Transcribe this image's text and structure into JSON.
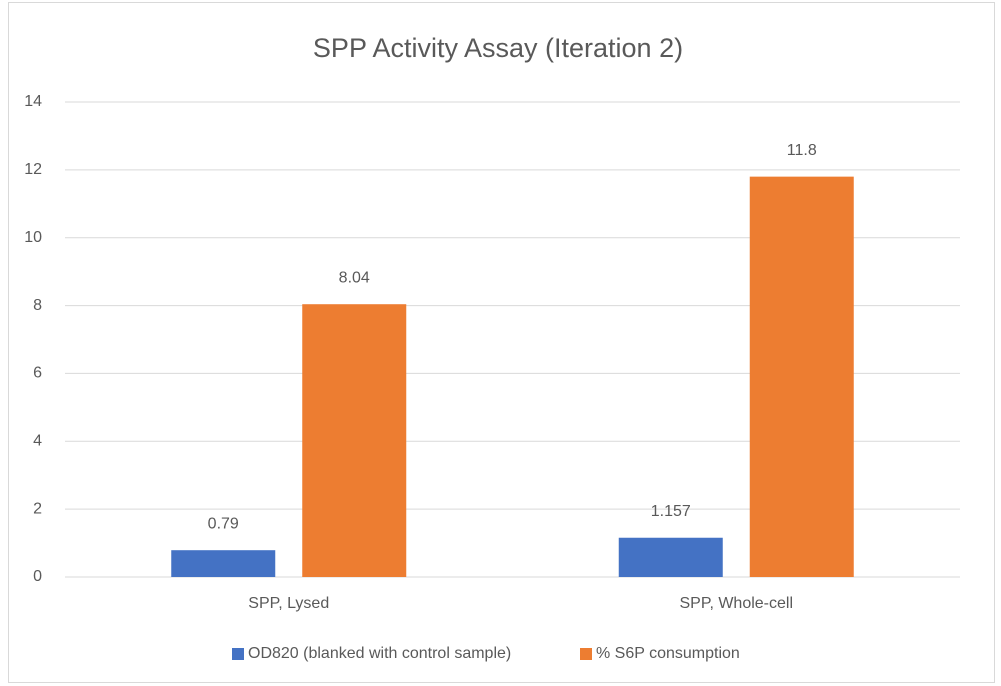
{
  "chart_data": {
    "type": "bar",
    "title": "SPP Activity Assay (Iteration 2)",
    "categories": [
      "SPP, Lysed",
      "SPP, Whole-cell"
    ],
    "series": [
      {
        "name": "OD820 (blanked with control sample)",
        "color": "#4472c4",
        "values": [
          0.79,
          1.157
        ]
      },
      {
        "name": "% S6P consumption",
        "color": "#ed7d31",
        "values": [
          8.04,
          11.8
        ]
      }
    ],
    "ylim": [
      0,
      14
    ],
    "yticks": [
      0,
      2,
      4,
      6,
      8,
      10,
      12,
      14
    ],
    "grid": true,
    "legend": "bottom"
  }
}
